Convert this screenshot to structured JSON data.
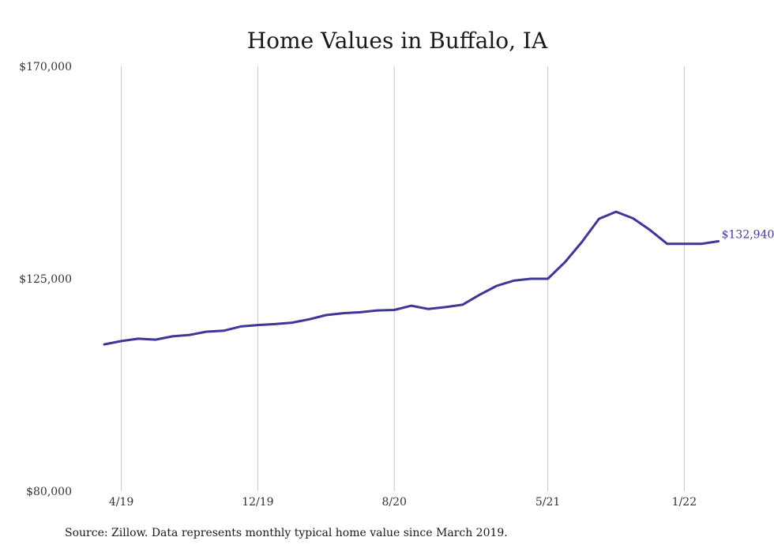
{
  "chart_data": {
    "type": "line",
    "title": "Home Values in Buffalo, IA",
    "xlabel": "",
    "ylabel": "",
    "ylim": [
      80000,
      170000
    ],
    "y_ticks": [
      {
        "value": 80000,
        "label": "$80,000"
      },
      {
        "value": 125000,
        "label": "$125,000"
      },
      {
        "value": 170000,
        "label": "$170,000"
      }
    ],
    "x_ticks": [
      {
        "month": "2019-04",
        "label": "4/19"
      },
      {
        "month": "2019-12",
        "label": "12/19"
      },
      {
        "month": "2020-08",
        "label": "8/20"
      },
      {
        "month": "2021-05",
        "label": "5/21"
      },
      {
        "month": "2022-01",
        "label": "1/22"
      }
    ],
    "grid": "vertical",
    "legend": "none",
    "line_color": "#3d3797",
    "grid_color": "#c8c8c8",
    "end_label": "$132,940",
    "series": [
      {
        "x": [
          "2019-03",
          "2019-04",
          "2019-05",
          "2019-06",
          "2019-07",
          "2019-08",
          "2019-09",
          "2019-10",
          "2019-11",
          "2019-12",
          "2020-01",
          "2020-02",
          "2020-03",
          "2020-04",
          "2020-05",
          "2020-06",
          "2020-07",
          "2020-08",
          "2020-09",
          "2020-10",
          "2020-11",
          "2020-12",
          "2021-01",
          "2021-02",
          "2021-03",
          "2021-04",
          "2021-05",
          "2021-06",
          "2021-07",
          "2021-08",
          "2021-09",
          "2021-10",
          "2021-11",
          "2021-12",
          "2022-01",
          "2022-02",
          "2022-03"
        ],
        "values": [
          111100,
          111800,
          112300,
          112100,
          112800,
          113100,
          113800,
          114000,
          114900,
          115200,
          115400,
          115700,
          116400,
          117300,
          117700,
          117900,
          118300,
          118400,
          119300,
          118600,
          119000,
          119500,
          121600,
          123500,
          124600,
          125000,
          125000,
          128500,
          132800,
          137700,
          139200,
          137800,
          135300,
          132400,
          132400,
          132400,
          132940
        ]
      }
    ],
    "source_note": "Source: Zillow. Data represents monthly typical home value since March 2019."
  }
}
